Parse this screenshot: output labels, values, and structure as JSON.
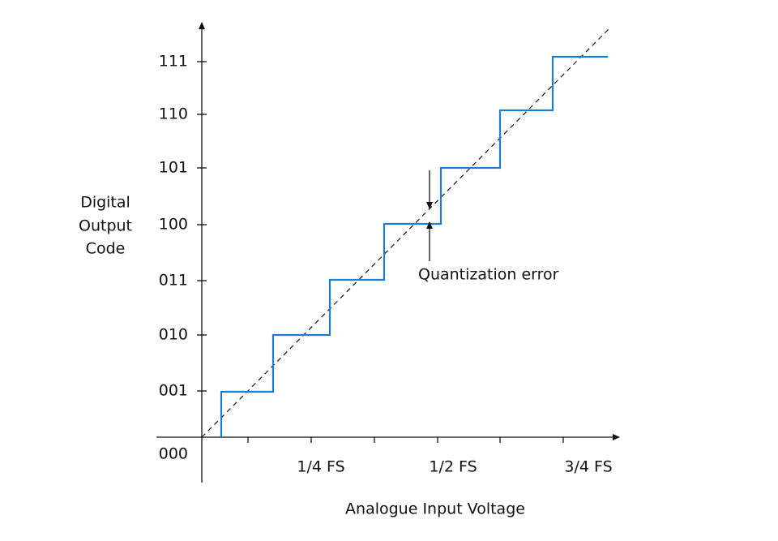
{
  "y_axis": {
    "title": [
      "Digital",
      "Output",
      "Code"
    ],
    "labels": [
      "111",
      "110",
      "101",
      "100",
      "011",
      "010",
      "001",
      "000"
    ]
  },
  "x_axis": {
    "title": "Analogue Input Voltage",
    "labels": [
      "1/4 FS",
      "1/2 FS",
      "3/4 FS"
    ]
  },
  "annotation": "Quantization error"
}
